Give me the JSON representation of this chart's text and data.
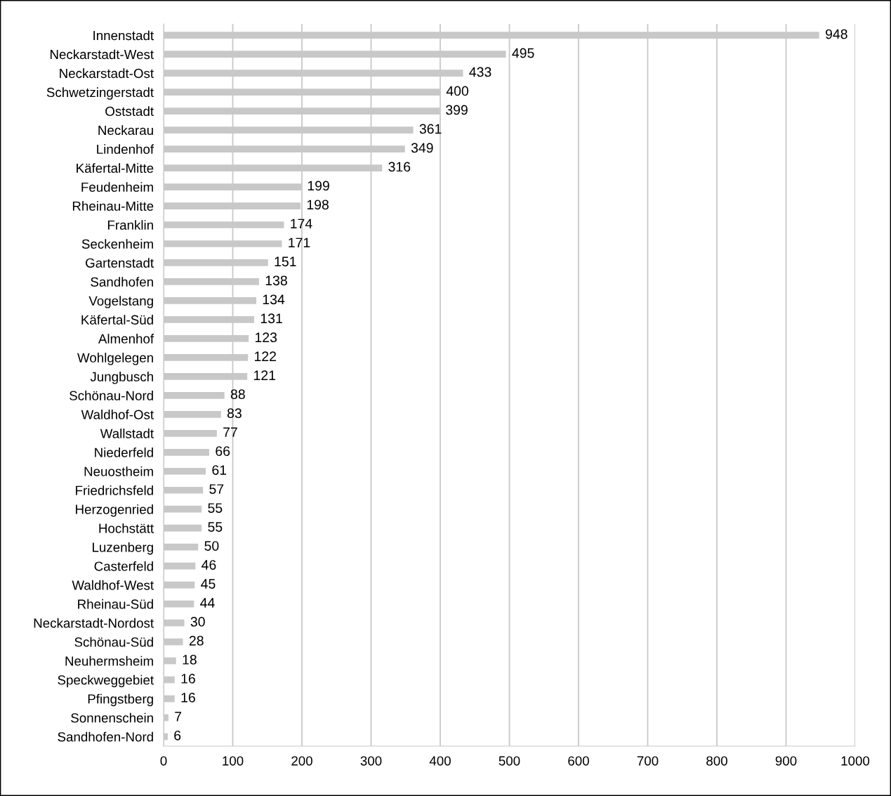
{
  "chart_data": {
    "type": "bar",
    "orientation": "horizontal",
    "categories": [
      "Innenstadt",
      "Neckarstadt-West",
      "Neckarstadt-Ost",
      "Schwetzingerstadt",
      "Oststadt",
      "Neckarau",
      "Lindenhof",
      "Käfertal-Mitte",
      "Feudenheim",
      "Rheinau-Mitte",
      "Franklin",
      "Seckenheim",
      "Gartenstadt",
      "Sandhofen",
      "Vogelstang",
      "Käfertal-Süd",
      "Almenhof",
      "Wohlgelegen",
      "Jungbusch",
      "Schönau-Nord",
      "Waldhof-Ost",
      "Wallstadt",
      "Niederfeld",
      "Neuostheim",
      "Friedrichsfeld",
      "Herzogenried",
      "Hochstätt",
      "Luzenberg",
      "Casterfeld",
      "Waldhof-West",
      "Rheinau-Süd",
      "Neckarstadt-Nordost",
      "Schönau-Süd",
      "Neuhermsheim",
      "Speckweggebiet",
      "Pfingstberg",
      "Sonnenschein",
      "Sandhofen-Nord"
    ],
    "values": [
      948,
      495,
      433,
      400,
      399,
      361,
      349,
      316,
      199,
      198,
      174,
      171,
      151,
      138,
      134,
      131,
      123,
      122,
      121,
      88,
      83,
      77,
      66,
      61,
      57,
      55,
      55,
      50,
      46,
      45,
      44,
      30,
      28,
      18,
      16,
      16,
      7,
      6
    ],
    "color": "#c8c8c8",
    "xlim": [
      0,
      1000
    ],
    "xticks": [
      0,
      100,
      200,
      300,
      400,
      500,
      600,
      700,
      800,
      900,
      1000
    ],
    "grid": "x",
    "data_labels": true
  }
}
